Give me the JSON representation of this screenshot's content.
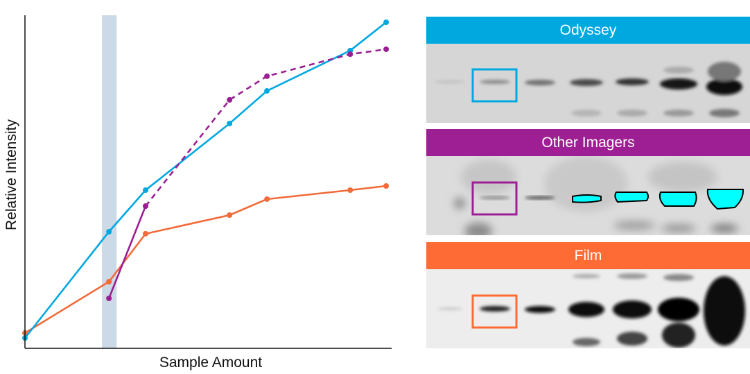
{
  "chart_data": {
    "type": "line",
    "xlabel": "Sample Amount",
    "ylabel": "Relative Intensity",
    "xlim": [
      0,
      1
    ],
    "ylim": [
      0,
      1
    ],
    "grid": false,
    "ticks": false,
    "highlight_band": {
      "x": [
        0.21,
        0.25
      ],
      "color": "#ccd9e6"
    },
    "series": [
      {
        "key": "odyssey",
        "color": "#00a8e0",
        "style": "solid",
        "x": [
          0,
          0.229,
          0.329,
          0.558,
          0.66,
          0.887,
          0.985
        ],
        "y": [
          0.031,
          0.35,
          0.475,
          0.675,
          0.773,
          0.894,
          0.979
        ]
      },
      {
        "key": "film",
        "color": "#f26b3a",
        "style": "solid",
        "x": [
          0,
          0.229,
          0.329,
          0.558,
          0.66,
          0.887,
          0.985
        ],
        "y": [
          0.046,
          0.2,
          0.344,
          0.4,
          0.448,
          0.475,
          0.4875
        ]
      },
      {
        "key": "other-imagers-linear",
        "color": "#9b1f93",
        "style": "solid",
        "x": [
          0.229,
          0.329
        ],
        "y": [
          0.15,
          0.427
        ]
      },
      {
        "key": "other-imagers-saturated",
        "color": "#9b1f93",
        "style": "dashed",
        "x": [
          0.329,
          0.558,
          0.66,
          0.887,
          0.985
        ],
        "y": [
          0.427,
          0.746,
          0.817,
          0.883,
          0.898
        ]
      }
    ]
  },
  "panels": [
    {
      "title": "Odyssey",
      "color": "#00a8e0"
    },
    {
      "title": "Other Imagers",
      "color": "#9e1f94"
    },
    {
      "title": "Film",
      "color": "#ff6b35"
    }
  ]
}
